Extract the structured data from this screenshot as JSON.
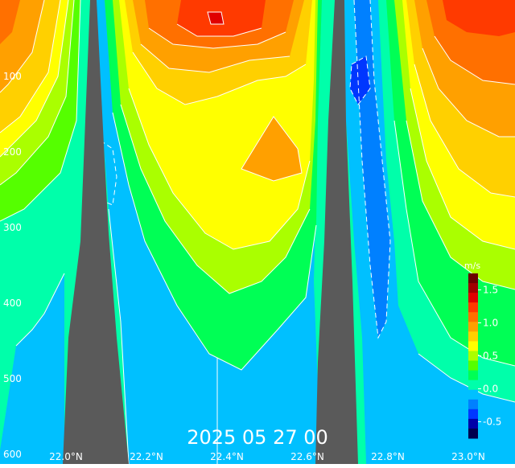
{
  "chart_data": {
    "type": "heatmap",
    "timestamp": "2025 05 27 00",
    "y_axis": {
      "ticks": [
        100,
        200,
        300,
        400,
        500,
        600
      ],
      "labels": [
        "100",
        "200",
        "300",
        "400",
        "500",
        "600"
      ]
    },
    "x_axis": {
      "ticks": [
        22.0,
        22.2,
        22.4,
        22.6,
        22.8,
        23.0
      ],
      "labels": [
        "22.0°N",
        "22.2°N",
        "22.4°N",
        "22.6°N",
        "22.8°N",
        "23.0°N"
      ]
    },
    "colorbar": {
      "unit": "m/s",
      "min": -0.75,
      "max": 1.75,
      "ticks": [
        -0.5,
        0.0,
        0.5,
        1.0,
        1.5
      ],
      "labels": [
        "-0.5",
        "0.0",
        "0.5",
        "1.0",
        "1.5"
      ],
      "colors": [
        "#00004f",
        "#0000a8",
        "#0037ff",
        "#0080ff",
        "#00c0ff",
        "#00ffaa",
        "#00ff55",
        "#55ff00",
        "#aaff00",
        "#ffff00",
        "#ffd000",
        "#ffa000",
        "#ff7000",
        "#ff3a00",
        "#e00000",
        "#a00000",
        "#6a0000"
      ]
    },
    "land_mask_color": "#5a5a5a",
    "contour_color": "#ffffff"
  }
}
